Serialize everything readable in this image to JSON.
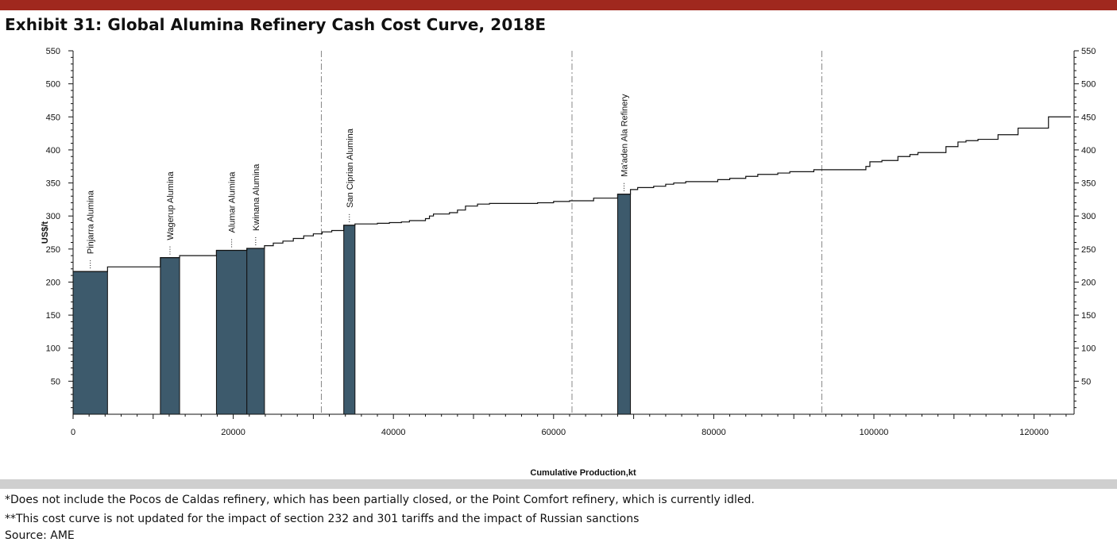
{
  "header": {
    "title": "Exhibit 31: Global Alumina Refinery Cash Cost Curve, 2018E"
  },
  "footnotes": {
    "note1": "*Does not include the Pocos de Caldas refinery, which has been partially closed, or the Point Comfort refinery, which is currently idled.",
    "note2": "**This cost curve is not updated for the impact of section 232 and 301 tariffs and the impact of Russian sanctions",
    "source": "Source: AME"
  },
  "colors": {
    "highlight": "#3d5a6c",
    "top_bar": "#a0281e",
    "separator": "#cfcfcf"
  },
  "chart_data": {
    "type": "bar",
    "title": "Exhibit 31: Global Alumina Refinery Cash Cost Curve, 2018E",
    "xlabel": "Cumulative Production,kt",
    "ylabel": "US$/t",
    "xlim": [
      0,
      125000
    ],
    "ylim": [
      0,
      550
    ],
    "x_ticks": [
      0,
      20000,
      40000,
      60000,
      80000,
      100000,
      120000
    ],
    "y_ticks": [
      50,
      100,
      150,
      200,
      250,
      300,
      350,
      400,
      450,
      500,
      550
    ],
    "quartile_lines_x": [
      31000,
      62300,
      93500
    ],
    "steps": [
      [
        0,
        216
      ],
      [
        4300,
        223
      ],
      [
        10900,
        237
      ],
      [
        13300,
        240
      ],
      [
        17900,
        248
      ],
      [
        21700,
        251
      ],
      [
        23900,
        255
      ],
      [
        25000,
        259
      ],
      [
        26200,
        262
      ],
      [
        27500,
        266
      ],
      [
        28800,
        270
      ],
      [
        30000,
        273
      ],
      [
        31100,
        276
      ],
      [
        32300,
        278
      ],
      [
        33800,
        286
      ],
      [
        35200,
        288
      ],
      [
        38000,
        289
      ],
      [
        39500,
        290
      ],
      [
        41000,
        291
      ],
      [
        42000,
        293
      ],
      [
        44000,
        296
      ],
      [
        44500,
        300
      ],
      [
        45000,
        303
      ],
      [
        47000,
        305
      ],
      [
        48000,
        309
      ],
      [
        49000,
        315
      ],
      [
        50500,
        318
      ],
      [
        52000,
        319
      ],
      [
        58000,
        320
      ],
      [
        60000,
        322
      ],
      [
        62000,
        323
      ],
      [
        65000,
        327
      ],
      [
        68000,
        333
      ],
      [
        69600,
        340
      ],
      [
        70500,
        343
      ],
      [
        72500,
        345
      ],
      [
        74000,
        348
      ],
      [
        75000,
        350
      ],
      [
        76500,
        352
      ],
      [
        80500,
        355
      ],
      [
        82000,
        357
      ],
      [
        84000,
        360
      ],
      [
        85500,
        363
      ],
      [
        88000,
        365
      ],
      [
        89500,
        367
      ],
      [
        92500,
        370
      ],
      [
        99000,
        375
      ],
      [
        99500,
        382
      ],
      [
        101000,
        384
      ],
      [
        103000,
        390
      ],
      [
        104500,
        393
      ],
      [
        105500,
        396
      ],
      [
        109000,
        405
      ],
      [
        110500,
        412
      ],
      [
        111500,
        414
      ],
      [
        113000,
        416
      ],
      [
        115500,
        423
      ],
      [
        118000,
        433
      ],
      [
        121800,
        450
      ],
      [
        124600,
        450
      ]
    ],
    "refineries": [
      {
        "name": "Pinjarra Alumina",
        "x_start": 0,
        "x_end": 4300,
        "cost": 216
      },
      {
        "name": "Wagerup Alumina",
        "x_start": 10900,
        "x_end": 13300,
        "cost": 237
      },
      {
        "name": "Alumar Alumina",
        "x_start": 17900,
        "x_end": 21700,
        "cost": 248
      },
      {
        "name": "Kwinana Alumina",
        "x_start": 21700,
        "x_end": 23900,
        "cost": 251
      },
      {
        "name": "San Ciprian Alumina",
        "x_start": 33800,
        "x_end": 35200,
        "cost": 286
      },
      {
        "name": "Ma'aden Ala Refinery",
        "x_start": 68000,
        "x_end": 69600,
        "cost": 333
      }
    ]
  }
}
